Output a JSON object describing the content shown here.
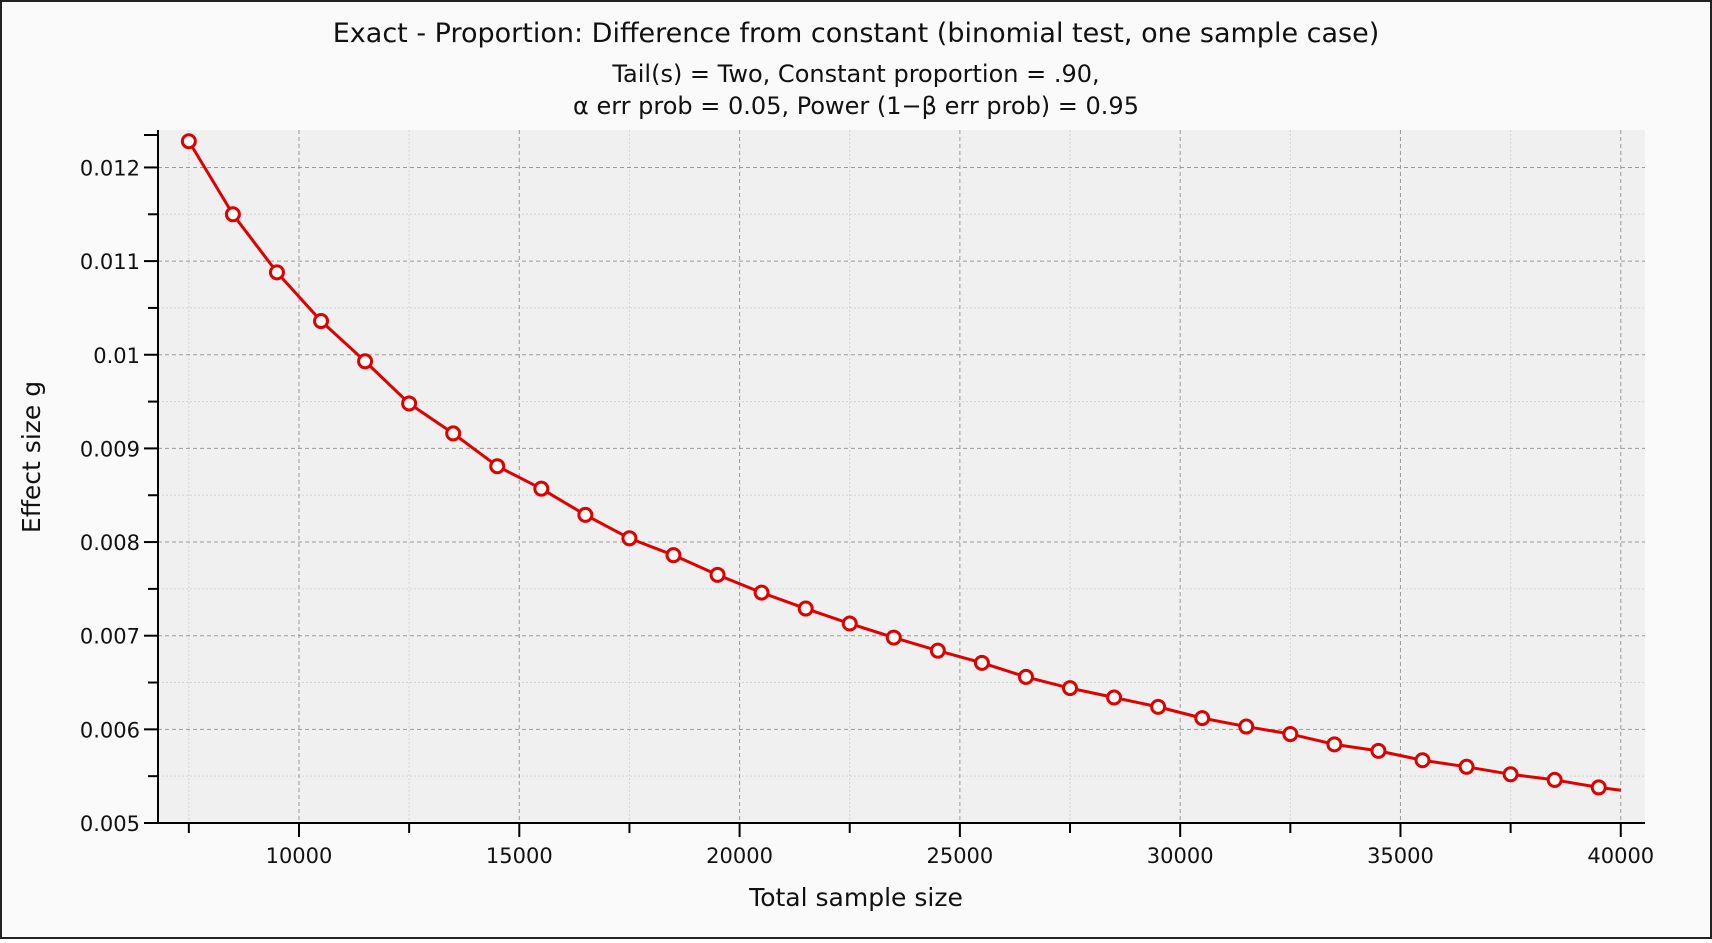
{
  "chart_data": {
    "type": "line",
    "title": "Exact - Proportion: Difference from constant (binomial test, one sample case)",
    "subtitle_line1": "Tail(s) = Two, Constant proportion = .90,",
    "subtitle_line2": "α err prob = 0.05, Power (1−β err prob) = 0.95",
    "xlabel": "Total sample size",
    "ylabel": "Effect size g",
    "xlim": [
      6800,
      40550
    ],
    "ylim": [
      0.005,
      0.0124
    ],
    "xticks": [
      10000,
      15000,
      20000,
      25000,
      30000,
      35000,
      40000
    ],
    "xtick_labels": [
      "10000",
      "15000",
      "20000",
      "25000",
      "30000",
      "35000",
      "40000"
    ],
    "yticks": [
      0.005,
      0.006,
      0.007,
      0.008,
      0.009,
      0.01,
      0.011,
      0.012
    ],
    "ytick_labels": [
      "0.005",
      "0.006",
      "0.007",
      "0.008",
      "0.009",
      "0.01",
      "0.011",
      "0.012"
    ],
    "grid": true,
    "line_end": {
      "x": 40000,
      "y": 0.00535
    },
    "series": [
      {
        "color": "#e00000",
        "x": [
          7500,
          8500,
          9500,
          10500,
          11500,
          12500,
          13500,
          14500,
          15500,
          16500,
          17500,
          18500,
          19500,
          20500,
          21500,
          22500,
          23500,
          24500,
          25500,
          26500,
          27500,
          28500,
          29500,
          30500,
          31500,
          32500,
          33500,
          34500,
          35500,
          36500,
          37500,
          38500,
          39500
        ],
        "y": [
          0.01228,
          0.0115,
          0.01088,
          0.01036,
          0.00993,
          0.00948,
          0.00916,
          0.00881,
          0.00857,
          0.00829,
          0.00804,
          0.00786,
          0.00765,
          0.00746,
          0.00729,
          0.00713,
          0.00698,
          0.00684,
          0.00671,
          0.00656,
          0.00644,
          0.00634,
          0.00624,
          0.00612,
          0.00603,
          0.00595,
          0.00584,
          0.00577,
          0.00567,
          0.0056,
          0.00552,
          0.00546,
          0.00538
        ]
      }
    ]
  }
}
